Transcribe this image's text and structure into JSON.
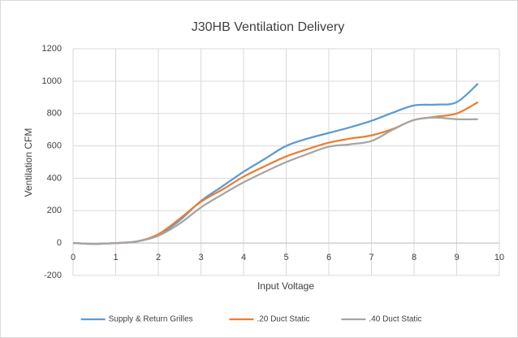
{
  "chart_data": {
    "type": "line",
    "title": "J30HB Ventilation Delivery",
    "xlabel": "Input Voltage",
    "ylabel": "Ventilation CFM",
    "x": [
      0,
      0.5,
      1,
      1.5,
      2,
      2.5,
      3,
      3.5,
      4,
      4.5,
      5,
      5.5,
      6,
      6.5,
      7,
      7.5,
      8,
      8.5,
      9,
      9.5
    ],
    "series": [
      {
        "name": "Supply & Return Grilles",
        "color": "#5b9bd5",
        "values": [
          0,
          -5,
          0,
          10,
          50,
          140,
          260,
          350,
          440,
          520,
          600,
          645,
          680,
          715,
          755,
          805,
          850,
          855,
          870,
          985
        ]
      },
      {
        "name": ".20 Duct Static",
        "color": "#ed7d31",
        "values": [
          0,
          -5,
          0,
          10,
          55,
          150,
          255,
          330,
          410,
          475,
          535,
          580,
          620,
          645,
          665,
          705,
          760,
          780,
          800,
          870
        ]
      },
      {
        "name": ".40 Duct Static",
        "color": "#a5a5a5",
        "values": [
          0,
          -5,
          0,
          10,
          45,
          120,
          220,
          300,
          375,
          440,
          500,
          550,
          595,
          610,
          630,
          700,
          760,
          775,
          765,
          765
        ]
      }
    ],
    "xlim": [
      0,
      10
    ],
    "xticks": [
      0,
      1,
      2,
      3,
      4,
      5,
      6,
      7,
      8,
      9,
      10
    ],
    "ylim": [
      -200,
      1200
    ],
    "yticks": [
      -200,
      0,
      200,
      400,
      600,
      800,
      1000,
      1200
    ],
    "grid": true,
    "legend": "bottom"
  }
}
